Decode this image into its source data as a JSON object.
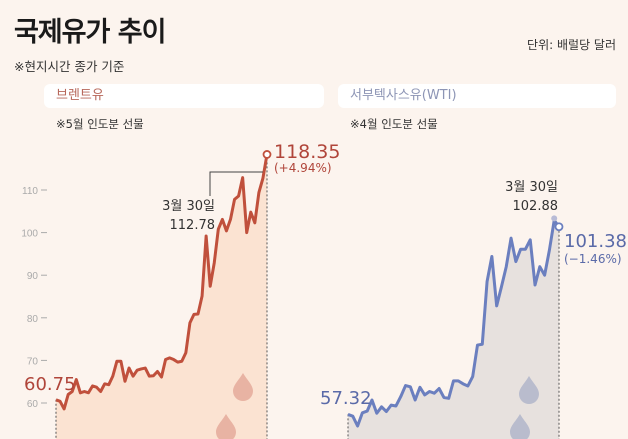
{
  "header": {
    "title": "국제유가 추이",
    "note": "※현지시간 종가 기준",
    "unit": "단위: 배럴당 달러"
  },
  "chart_data": [
    {
      "type": "area",
      "name_label": "브렌트유",
      "subtitle": "※5월 인도분 선물",
      "color": "#c0503c",
      "fill": "#fbe3d2",
      "yticks": [
        "60",
        "70",
        "80",
        "90",
        "100",
        "110"
      ],
      "ylim": [
        56,
        120
      ],
      "values": [
        60.75,
        60.4,
        58.6,
        62,
        62.7,
        65.5,
        62.4,
        62.7,
        62.4,
        64,
        63.7,
        62.7,
        64.5,
        64.3,
        66.3,
        69.8,
        69.8,
        65.1,
        68.2,
        66.3,
        67.7,
        68,
        68.2,
        66.3,
        66.4,
        67.4,
        66.1,
        70.2,
        70.6,
        70.2,
        69.6,
        69.8,
        71.8,
        78.8,
        80.8,
        80.9,
        85.1,
        99.2,
        87.4,
        92.9,
        100.8,
        103.1,
        100.4,
        103.1,
        107.8,
        108.6,
        112.9,
        100,
        104.8,
        102.3,
        109.4,
        112.78,
        118.35
      ],
      "start_label": "60.75",
      "annotation": {
        "date": "3월 30일",
        "value": "112.78"
      },
      "end_label": "118.35",
      "end_change": "(+4.94%)"
    },
    {
      "type": "area",
      "name_label": "서부텍사스유(WTI)",
      "subtitle": "※4월 인도분 선물",
      "color": "#6b7fbf",
      "fill": "#e7e1de",
      "ylim": [
        56,
        120
      ],
      "values": [
        57.32,
        56.9,
        54.6,
        57.7,
        58.1,
        60.7,
        57.6,
        59.1,
        58,
        59.5,
        59.3,
        61.5,
        64.1,
        63.8,
        60.7,
        63.7,
        61.9,
        62.7,
        62.3,
        63.4,
        61.3,
        61.1,
        65.2,
        65.2,
        64.5,
        64,
        66.2,
        73.6,
        73.8,
        88.5,
        94.4,
        82.8,
        87.3,
        92,
        98.7,
        93.2,
        96.1,
        96.1,
        98.3,
        87.7,
        92,
        90,
        95.9,
        102.88,
        101.38
      ],
      "start_label": "57.32",
      "annotation": {
        "date": "3월 30일",
        "value": "102.88"
      },
      "end_label": "101.38",
      "end_change": "(−1.46%)"
    }
  ]
}
